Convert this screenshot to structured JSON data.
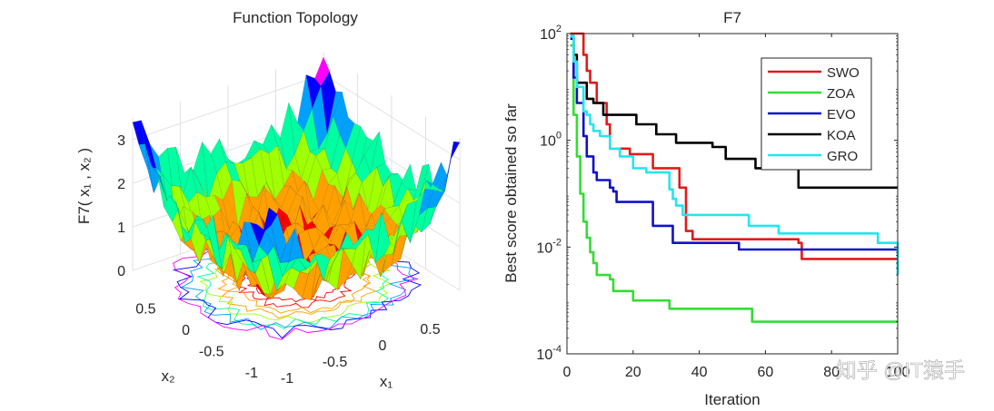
{
  "chart_data": [
    {
      "type": "surface",
      "title": "Function Topology",
      "zlabel": "F7( x₁ , x₂ )",
      "xlabel": "x₁",
      "ylabel": "x₂",
      "xlim": [
        -1,
        1
      ],
      "ylim": [
        -1,
        1
      ],
      "zlim": [
        0,
        3.5
      ],
      "x_ticks": [
        "-1",
        "-0.5",
        "0",
        "0.5"
      ],
      "y_ticks": [
        "-1",
        "-0.5",
        "0",
        "0.5"
      ],
      "z_ticks": [
        "0",
        "1",
        "2",
        "3"
      ],
      "z_tick_values": [
        0,
        1,
        2,
        3
      ],
      "surface_model": "z = x1^4 + x2^4 + noise (range ~0 to 3.5); contour map drawn on base plane",
      "colormap": [
        "#ff00ff",
        "#0000ff",
        "#00a0ff",
        "#00ffa0",
        "#a0ff00",
        "#ffa000",
        "#ff0000"
      ]
    },
    {
      "type": "line",
      "title": "F7",
      "xlabel": "Iteration",
      "ylabel": "Best score obtained so far",
      "xlim": [
        0,
        100
      ],
      "ylim": [
        0.0001,
        100
      ],
      "yscale": "log",
      "grid": false,
      "legend_position": "top-right",
      "x_ticks": [
        "0",
        "20",
        "40",
        "60",
        "80",
        "100"
      ],
      "x_tick_values": [
        0,
        20,
        40,
        60,
        80,
        100
      ],
      "y_ticks": [
        {
          "base": "10",
          "exp": "2",
          "value": 100
        },
        {
          "base": "10",
          "exp": "0",
          "value": 1
        },
        {
          "base": "10",
          "exp": "-2",
          "value": 0.01
        },
        {
          "base": "10",
          "exp": "-4",
          "value": 0.0001
        }
      ],
      "series": [
        {
          "name": "SWO",
          "color": "#e41a1a",
          "points": [
            [
              1,
              100
            ],
            [
              4,
              100
            ],
            [
              5,
              40
            ],
            [
              6,
              20
            ],
            [
              7,
              12
            ],
            [
              8,
              12
            ],
            [
              9,
              5
            ],
            [
              12,
              2
            ],
            [
              13,
              0.7
            ],
            [
              18,
              0.7
            ],
            [
              19,
              0.55
            ],
            [
              25,
              0.55
            ],
            [
              26,
              0.3
            ],
            [
              33,
              0.3
            ],
            [
              34,
              0.13
            ],
            [
              35,
              0.13
            ],
            [
              36,
              0.02
            ],
            [
              38,
              0.014
            ],
            [
              69,
              0.014
            ],
            [
              70,
              0.012
            ],
            [
              71,
              0.006
            ],
            [
              100,
              0.006
            ]
          ]
        },
        {
          "name": "ZOA",
          "color": "#33dd33",
          "points": [
            [
              1,
              60
            ],
            [
              2,
              3
            ],
            [
              3,
              0.5
            ],
            [
              4,
              0.1
            ],
            [
              5,
              0.03
            ],
            [
              6,
              0.015
            ],
            [
              7,
              0.008
            ],
            [
              8,
              0.005
            ],
            [
              9,
              0.003
            ],
            [
              13,
              0.0025
            ],
            [
              14,
              0.0015
            ],
            [
              19,
              0.0015
            ],
            [
              20,
              0.001
            ],
            [
              30,
              0.001
            ],
            [
              31,
              0.0007
            ],
            [
              55,
              0.0007
            ],
            [
              56,
              0.0004
            ],
            [
              100,
              0.0004
            ]
          ]
        },
        {
          "name": "EVO",
          "color": "#1010cc",
          "points": [
            [
              1,
              80
            ],
            [
              2,
              15
            ],
            [
              3,
              5
            ],
            [
              5,
              1.2
            ],
            [
              6,
              0.5
            ],
            [
              8,
              0.25
            ],
            [
              9,
              0.18
            ],
            [
              12,
              0.18
            ],
            [
              13,
              0.13
            ],
            [
              14,
              0.11
            ],
            [
              15,
              0.07
            ],
            [
              25,
              0.07
            ],
            [
              26,
              0.025
            ],
            [
              31,
              0.025
            ],
            [
              32,
              0.012
            ],
            [
              51,
              0.012
            ],
            [
              52,
              0.009
            ],
            [
              100,
              0.009
            ]
          ]
        },
        {
          "name": "KOA",
          "color": "#000000",
          "points": [
            [
              1,
              90
            ],
            [
              2,
              40
            ],
            [
              3,
              12
            ],
            [
              6,
              6
            ],
            [
              7,
              6
            ],
            [
              8,
              5
            ],
            [
              10,
              5
            ],
            [
              11,
              3
            ],
            [
              20,
              3
            ],
            [
              21,
              2
            ],
            [
              26,
              2
            ],
            [
              27,
              1.3
            ],
            [
              32,
              1.3
            ],
            [
              33,
              0.9
            ],
            [
              43,
              0.9
            ],
            [
              44,
              0.75
            ],
            [
              47,
              0.75
            ],
            [
              48,
              0.45
            ],
            [
              56,
              0.45
            ],
            [
              57,
              0.3
            ],
            [
              69,
              0.3
            ],
            [
              70,
              0.13
            ],
            [
              100,
              0.13
            ]
          ]
        },
        {
          "name": "GRO",
          "color": "#22e6f0",
          "points": [
            [
              1,
              90
            ],
            [
              2,
              30
            ],
            [
              3,
              10
            ],
            [
              5,
              3.5
            ],
            [
              6,
              3
            ],
            [
              7,
              2
            ],
            [
              8,
              1.5
            ],
            [
              10,
              1.2
            ],
            [
              12,
              1.2
            ],
            [
              13,
              0.7
            ],
            [
              15,
              0.7
            ],
            [
              16,
              0.5
            ],
            [
              19,
              0.5
            ],
            [
              20,
              0.3
            ],
            [
              23,
              0.3
            ],
            [
              24,
              0.25
            ],
            [
              30,
              0.25
            ],
            [
              31,
              0.12
            ],
            [
              32,
              0.08
            ],
            [
              33,
              0.06
            ],
            [
              34,
              0.06
            ],
            [
              35,
              0.04
            ],
            [
              54,
              0.04
            ],
            [
              55,
              0.025
            ],
            [
              63,
              0.025
            ],
            [
              64,
              0.018
            ],
            [
              93,
              0.018
            ],
            [
              94,
              0.012
            ],
            [
              99,
              0.012
            ],
            [
              100,
              0.003
            ]
          ]
        }
      ]
    }
  ],
  "watermark": "知乎 @IT猿手"
}
